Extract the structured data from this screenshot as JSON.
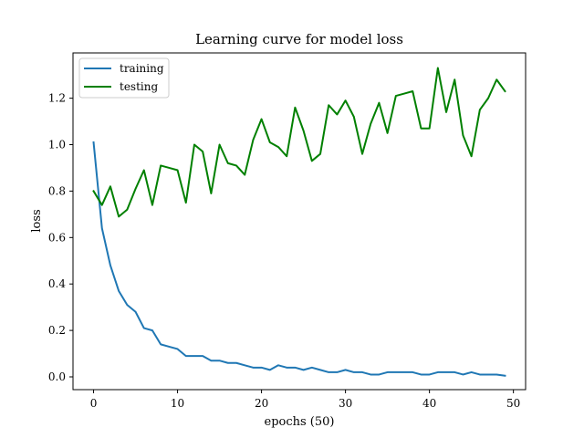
{
  "chart_data": {
    "type": "line",
    "title": "Learning curve for model loss",
    "xlabel": "epochs (50)",
    "ylabel": "loss",
    "xlim": [
      -2.45,
      51.45
    ],
    "ylim": [
      -0.055,
      1.395
    ],
    "xticks": [
      0,
      10,
      20,
      30,
      40,
      50
    ],
    "yticks": [
      0.0,
      0.2,
      0.4,
      0.6,
      0.8,
      1.0,
      1.2
    ],
    "grid": false,
    "legend_position": "top-left",
    "x": [
      0,
      1,
      2,
      3,
      4,
      5,
      6,
      7,
      8,
      9,
      10,
      11,
      12,
      13,
      14,
      15,
      16,
      17,
      18,
      19,
      20,
      21,
      22,
      23,
      24,
      25,
      26,
      27,
      28,
      29,
      30,
      31,
      32,
      33,
      34,
      35,
      36,
      37,
      38,
      39,
      40,
      41,
      42,
      43,
      44,
      45,
      46,
      47,
      48,
      49
    ],
    "series": [
      {
        "name": "training",
        "color": "#1f77b4",
        "values": [
          1.01,
          0.64,
          0.48,
          0.37,
          0.31,
          0.28,
          0.21,
          0.2,
          0.14,
          0.13,
          0.12,
          0.09,
          0.09,
          0.09,
          0.07,
          0.07,
          0.06,
          0.06,
          0.05,
          0.04,
          0.04,
          0.03,
          0.05,
          0.04,
          0.04,
          0.03,
          0.04,
          0.03,
          0.02,
          0.02,
          0.03,
          0.02,
          0.02,
          0.01,
          0.01,
          0.02,
          0.02,
          0.02,
          0.02,
          0.01,
          0.01,
          0.02,
          0.02,
          0.02,
          0.01,
          0.02,
          0.01,
          0.01,
          0.01,
          0.005
        ]
      },
      {
        "name": "testing",
        "color": "#008000",
        "values": [
          0.8,
          0.74,
          0.82,
          0.69,
          0.72,
          0.81,
          0.89,
          0.74,
          0.91,
          0.9,
          0.89,
          0.75,
          1.0,
          0.97,
          0.79,
          1.0,
          0.92,
          0.91,
          0.87,
          1.02,
          1.11,
          1.01,
          0.99,
          0.95,
          1.16,
          1.06,
          0.93,
          0.96,
          1.17,
          1.13,
          1.19,
          1.12,
          0.96,
          1.09,
          1.18,
          1.05,
          1.21,
          1.22,
          1.23,
          1.07,
          1.07,
          1.33,
          1.14,
          1.28,
          1.04,
          0.95,
          1.15,
          1.2,
          1.28,
          1.23
        ]
      }
    ]
  }
}
